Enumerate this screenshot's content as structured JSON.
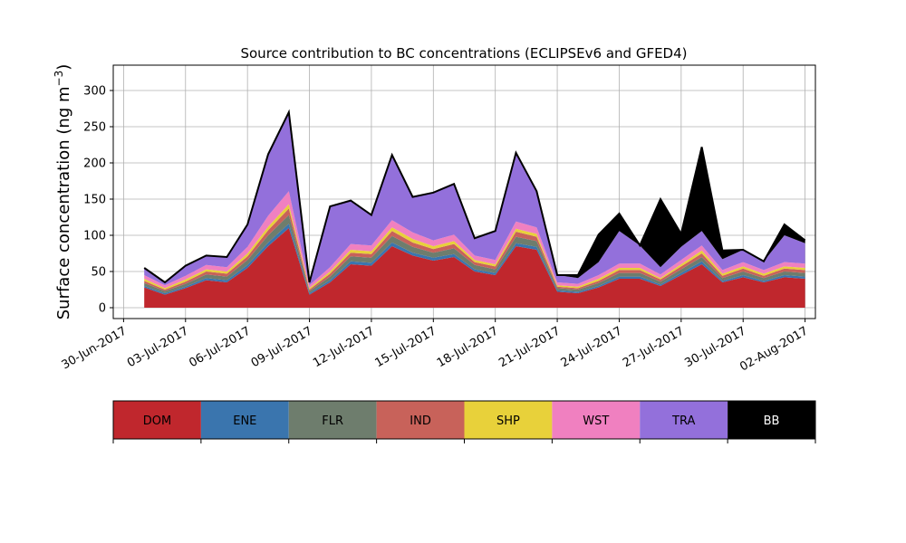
{
  "chart_data": {
    "type": "area",
    "stacked": true,
    "title": "Source contribution to BC concentrations (ECLIPSEv6 and GFED4)",
    "xlabel": "",
    "ylabel": "Surface concentration (ng m",
    "ylabel_superscript": "−3",
    "ylabel_close": ")",
    "xlim": [
      "2017-06-29T12:00",
      "2017-08-02T12:00"
    ],
    "ylim": [
      -15,
      335
    ],
    "grid": true,
    "x_ticks": [
      "2017-06-30",
      "2017-07-03",
      "2017-07-06",
      "2017-07-09",
      "2017-07-12",
      "2017-07-15",
      "2017-07-18",
      "2017-07-21",
      "2017-07-24",
      "2017-07-27",
      "2017-07-30",
      "2017-08-02"
    ],
    "x_tick_labels": [
      "30-Jun-2017",
      "03-Jul-2017",
      "06-Jul-2017",
      "09-Jul-2017",
      "12-Jul-2017",
      "15-Jul-2017",
      "18-Jul-2017",
      "21-Jul-2017",
      "24-Jul-2017",
      "27-Jul-2017",
      "30-Jul-2017",
      "02-Aug-2017"
    ],
    "y_ticks": [
      0,
      50,
      100,
      150,
      200,
      250,
      300
    ],
    "x": [
      "2017-07-01",
      "2017-07-02",
      "2017-07-03",
      "2017-07-04",
      "2017-07-05",
      "2017-07-06",
      "2017-07-07",
      "2017-07-08",
      "2017-07-09",
      "2017-07-10",
      "2017-07-11",
      "2017-07-12",
      "2017-07-13",
      "2017-07-14",
      "2017-07-15",
      "2017-07-16",
      "2017-07-17",
      "2017-07-18",
      "2017-07-19",
      "2017-07-20",
      "2017-07-21",
      "2017-07-22",
      "2017-07-23",
      "2017-07-24",
      "2017-07-25",
      "2017-07-26",
      "2017-07-27",
      "2017-07-28",
      "2017-07-29",
      "2017-07-30",
      "2017-07-31",
      "2017-08-01",
      "2017-08-02"
    ],
    "series": [
      {
        "name": "DOM",
        "values": [
          28,
          18,
          27,
          38,
          35,
          55,
          85,
          110,
          18,
          35,
          60,
          58,
          85,
          72,
          65,
          70,
          50,
          45,
          85,
          80,
          22,
          20,
          28,
          40,
          40,
          30,
          45,
          60,
          35,
          42,
          35,
          42,
          40
        ]
      },
      {
        "name": "ENE",
        "values": [
          2,
          2,
          2,
          3,
          3,
          4,
          5,
          6,
          2,
          3,
          4,
          4,
          5,
          4,
          4,
          4,
          3,
          3,
          4,
          4,
          2,
          2,
          2,
          3,
          3,
          2,
          3,
          4,
          2,
          3,
          2,
          3,
          3
        ]
      },
      {
        "name": "FLR",
        "values": [
          4,
          3,
          4,
          5,
          5,
          7,
          10,
          12,
          3,
          5,
          7,
          7,
          9,
          8,
          7,
          8,
          6,
          5,
          9,
          8,
          3,
          3,
          4,
          5,
          5,
          4,
          5,
          6,
          4,
          5,
          4,
          5,
          5
        ]
      },
      {
        "name": "IND",
        "values": [
          3,
          2,
          3,
          4,
          4,
          5,
          7,
          9,
          2,
          4,
          5,
          5,
          7,
          6,
          5,
          6,
          4,
          4,
          7,
          6,
          2,
          2,
          3,
          4,
          4,
          3,
          4,
          5,
          3,
          4,
          3,
          4,
          4
        ]
      },
      {
        "name": "SHP",
        "values": [
          3,
          2,
          3,
          3,
          3,
          4,
          5,
          6,
          2,
          3,
          4,
          4,
          5,
          5,
          4,
          4,
          3,
          3,
          4,
          4,
          2,
          2,
          3,
          3,
          3,
          2,
          3,
          4,
          3,
          3,
          3,
          3,
          3
        ]
      },
      {
        "name": "WST",
        "values": [
          5,
          4,
          5,
          6,
          6,
          9,
          15,
          18,
          4,
          6,
          8,
          8,
          10,
          9,
          8,
          9,
          6,
          6,
          10,
          9,
          4,
          4,
          5,
          6,
          6,
          5,
          6,
          7,
          5,
          6,
          5,
          6,
          6
        ]
      },
      {
        "name": "TRA",
        "values": [
          10,
          4,
          14,
          13,
          14,
          31,
          85,
          109,
          4,
          84,
          60,
          42,
          90,
          49,
          66,
          70,
          24,
          40,
          95,
          50,
          10,
          8,
          18,
          45,
          25,
          10,
          18,
          20,
          15,
          17,
          12,
          37,
          28
        ]
      },
      {
        "name": "BB",
        "values": [
          0,
          0,
          0,
          0,
          0,
          0,
          0,
          0,
          0,
          0,
          0,
          0,
          0,
          0,
          0,
          0,
          0,
          0,
          0,
          0,
          0,
          4,
          38,
          24,
          0,
          94,
          18,
          116,
          12,
          0,
          0,
          15,
          4
        ]
      }
    ],
    "legend_position": "below"
  },
  "legend": {
    "items": [
      {
        "label": "DOM",
        "color": "#c0272d"
      },
      {
        "label": "ENE",
        "color": "#3a75ae"
      },
      {
        "label": "FLR",
        "color": "#6e7d6d"
      },
      {
        "label": "IND",
        "color": "#c8625a"
      },
      {
        "label": "SHP",
        "color": "#e8d13a"
      },
      {
        "label": "WST",
        "color": "#f080c0"
      },
      {
        "label": "TRA",
        "color": "#9370db"
      },
      {
        "label": "BB",
        "color": "#000000"
      }
    ]
  }
}
